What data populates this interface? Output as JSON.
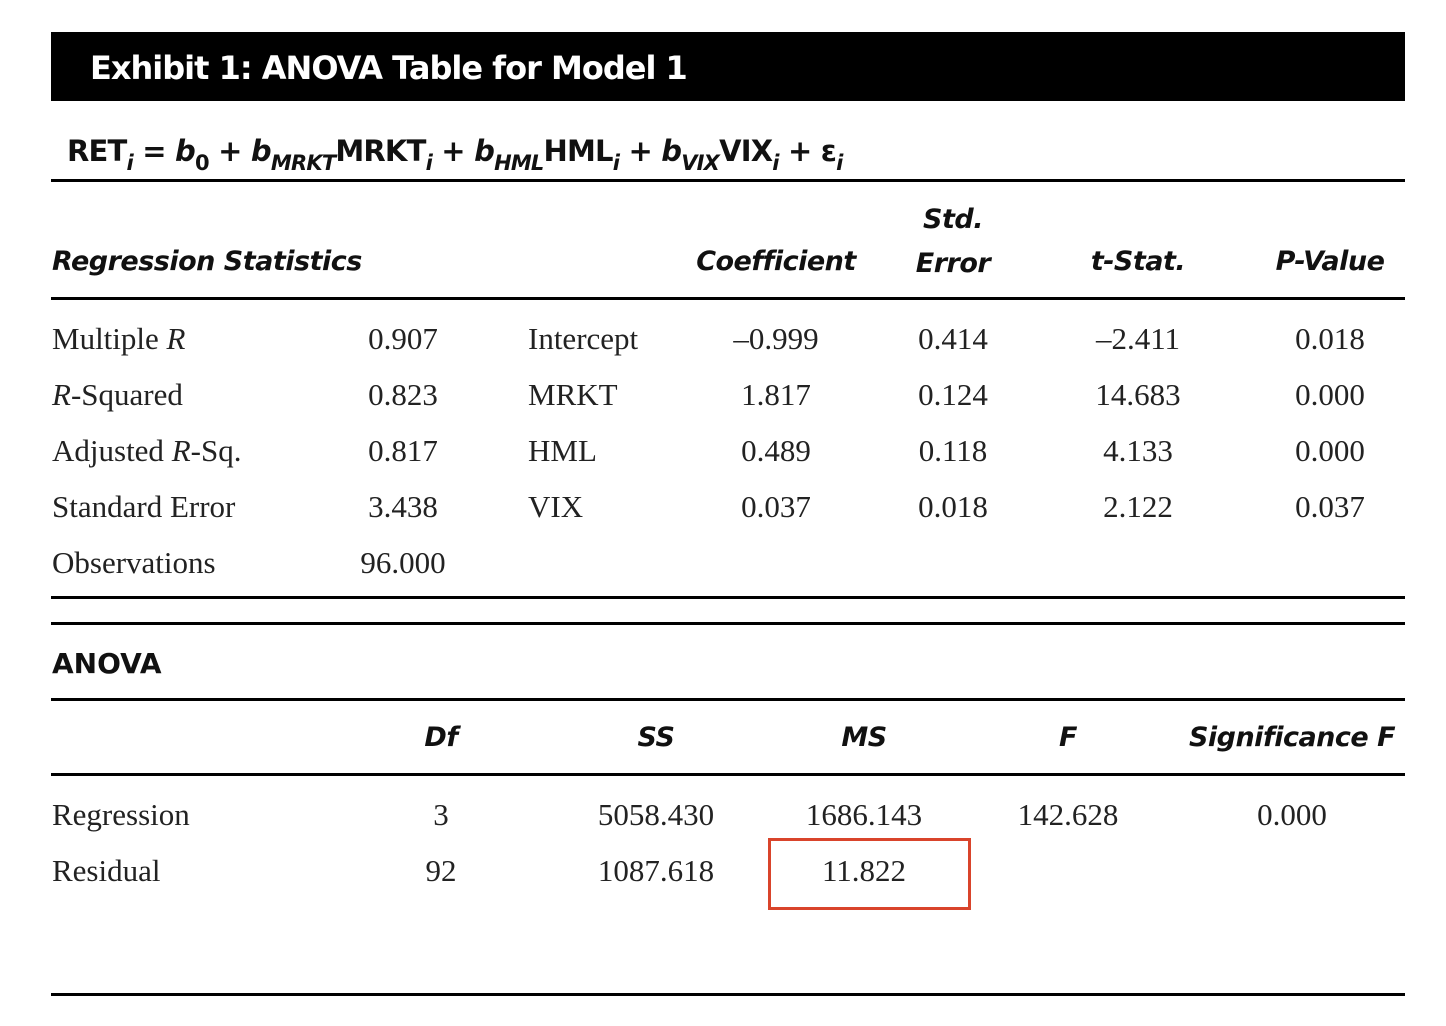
{
  "exhibit_title": "Exhibit 1: ANOVA Table for Model 1",
  "equation": [
    "RET",
    "i",
    " = ",
    "b",
    "0",
    " + ",
    "b",
    "MRKT",
    "MRKT",
    "i",
    " + ",
    "b",
    "HML",
    "HML",
    "i",
    " + ",
    "b",
    "VIX",
    "VIX",
    "i",
    " + ε",
    "i"
  ],
  "regression_statistics": {
    "header": "Regression Statistics",
    "rows": [
      {
        "label": [
          "Multiple ",
          "R"
        ],
        "value": "0.907"
      },
      {
        "label": [
          "R",
          "-Squared"
        ],
        "value": "0.823"
      },
      {
        "label": [
          "Adjusted ",
          "R",
          "-Sq."
        ],
        "value": "0.817"
      },
      {
        "label": [
          "Standard Error"
        ],
        "value": "3.438"
      },
      {
        "label": [
          "Observations"
        ],
        "value": "96.000"
      }
    ]
  },
  "coefficients": {
    "headers": [
      "Coefficient",
      "Std. Error",
      "t-Stat.",
      "P-Value"
    ],
    "rows": [
      {
        "name": "Intercept",
        "values": [
          "–0.999",
          "0.414",
          "–2.411",
          "0.018"
        ]
      },
      {
        "name": "MRKT",
        "values": [
          "1.817",
          "0.124",
          "14.683",
          "0.000"
        ]
      },
      {
        "name": "HML",
        "values": [
          "0.489",
          "0.118",
          "4.133",
          "0.000"
        ]
      },
      {
        "name": "VIX",
        "values": [
          "0.037",
          "0.018",
          "2.122",
          "0.037"
        ]
      }
    ]
  },
  "anova": {
    "title": "ANOVA",
    "headers": [
      "Df",
      "SS",
      "MS",
      "F",
      "Significance F"
    ],
    "rows": [
      {
        "label": "Regression",
        "values": [
          "3",
          "5058.430",
          "1686.143",
          "142.628",
          "0.000"
        ]
      },
      {
        "label": "Residual",
        "values": [
          "92",
          "1087.618",
          "11.822"
        ]
      }
    ]
  }
}
